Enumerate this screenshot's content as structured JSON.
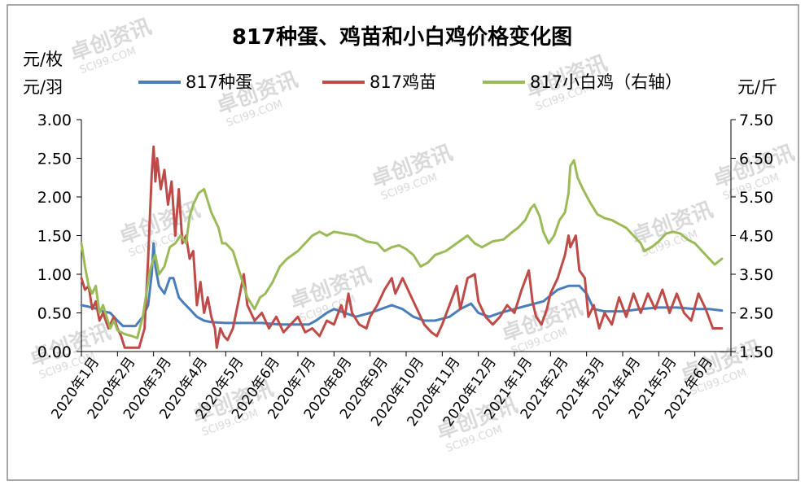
{
  "watermark": {
    "brand": "卓创资讯",
    "site": "SCI99.COM",
    "color": "#dcdcdc"
  },
  "chart_data": {
    "type": "line",
    "title": "817种蛋、鸡苗和小白鸡价格变化图",
    "left_axis_units": [
      "元/枚",
      "元/羽"
    ],
    "right_axis_unit": "元/斤",
    "y_left": {
      "min": 0,
      "max": 3,
      "ticks": [
        "0.00",
        "0.50",
        "1.00",
        "1.50",
        "2.00",
        "2.50",
        "3.00"
      ]
    },
    "y_right": {
      "min": 1.5,
      "max": 7.5,
      "ticks": [
        "1.50",
        "2.50",
        "3.50",
        "4.50",
        "5.50",
        "6.50",
        "7.50"
      ]
    },
    "x_labels": [
      "2020年1月",
      "2020年2月",
      "2020年3月",
      "2020年4月",
      "2020年5月",
      "2020年6月",
      "2020年7月",
      "2020年8月",
      "2020年9月",
      "2020年10月",
      "2020年11月",
      "2020年12月",
      "2021年1月",
      "2021年2月",
      "2021年3月",
      "2021年4月",
      "2021年5月",
      "2021年6月"
    ],
    "legend_position": "top",
    "grid": false,
    "series": [
      {
        "name": "817种蛋",
        "axis": "left",
        "color": "#4a7ebb",
        "points": [
          [
            0,
            0.6
          ],
          [
            0.2,
            0.58
          ],
          [
            0.45,
            0.55
          ],
          [
            0.6,
            0.52
          ],
          [
            0.8,
            0.5
          ],
          [
            1.0,
            0.4
          ],
          [
            1.15,
            0.33
          ],
          [
            1.5,
            0.33
          ],
          [
            1.7,
            0.45
          ],
          [
            1.85,
            0.6
          ],
          [
            1.95,
            1.0
          ],
          [
            2.0,
            1.4
          ],
          [
            2.05,
            1.1
          ],
          [
            2.15,
            0.85
          ],
          [
            2.3,
            0.75
          ],
          [
            2.45,
            0.95
          ],
          [
            2.55,
            0.95
          ],
          [
            2.7,
            0.7
          ],
          [
            2.85,
            0.62
          ],
          [
            3.0,
            0.55
          ],
          [
            3.2,
            0.45
          ],
          [
            3.4,
            0.4
          ],
          [
            3.6,
            0.38
          ],
          [
            4.0,
            0.37
          ],
          [
            4.5,
            0.37
          ],
          [
            5.0,
            0.37
          ],
          [
            5.5,
            0.35
          ],
          [
            6.0,
            0.35
          ],
          [
            6.3,
            0.35
          ],
          [
            6.5,
            0.4
          ],
          [
            6.8,
            0.5
          ],
          [
            7.0,
            0.55
          ],
          [
            7.3,
            0.5
          ],
          [
            7.6,
            0.45
          ],
          [
            8.0,
            0.5
          ],
          [
            8.3,
            0.55
          ],
          [
            8.6,
            0.6
          ],
          [
            8.9,
            0.55
          ],
          [
            9.2,
            0.45
          ],
          [
            9.5,
            0.4
          ],
          [
            9.8,
            0.4
          ],
          [
            10.2,
            0.45
          ],
          [
            10.5,
            0.55
          ],
          [
            10.8,
            0.62
          ],
          [
            11.0,
            0.5
          ],
          [
            11.3,
            0.45
          ],
          [
            11.6,
            0.5
          ],
          [
            12.0,
            0.55
          ],
          [
            12.4,
            0.6
          ],
          [
            12.8,
            0.65
          ],
          [
            13.2,
            0.8
          ],
          [
            13.5,
            0.85
          ],
          [
            13.8,
            0.85
          ],
          [
            14.0,
            0.75
          ],
          [
            14.2,
            0.55
          ],
          [
            14.5,
            0.52
          ],
          [
            15.0,
            0.52
          ],
          [
            15.5,
            0.55
          ],
          [
            16.0,
            0.57
          ],
          [
            16.5,
            0.57
          ],
          [
            17.0,
            0.55
          ],
          [
            17.4,
            0.55
          ],
          [
            17.75,
            0.53
          ]
        ]
      },
      {
        "name": "817鸡苗",
        "axis": "left",
        "color": "#be4b48",
        "points": [
          [
            0,
            0.95
          ],
          [
            0.1,
            0.8
          ],
          [
            0.2,
            0.85
          ],
          [
            0.3,
            0.55
          ],
          [
            0.4,
            0.65
          ],
          [
            0.5,
            0.4
          ],
          [
            0.6,
            0.5
          ],
          [
            0.75,
            0.3
          ],
          [
            0.9,
            0.45
          ],
          [
            1.0,
            0.3
          ],
          [
            1.1,
            0.2
          ],
          [
            1.2,
            0.05
          ],
          [
            1.4,
            0.05
          ],
          [
            1.6,
            0.05
          ],
          [
            1.75,
            0.3
          ],
          [
            1.85,
            1.2
          ],
          [
            1.95,
            2.3
          ],
          [
            2.0,
            2.65
          ],
          [
            2.05,
            2.2
          ],
          [
            2.1,
            2.5
          ],
          [
            2.2,
            2.1
          ],
          [
            2.3,
            2.35
          ],
          [
            2.4,
            1.9
          ],
          [
            2.5,
            2.2
          ],
          [
            2.6,
            1.5
          ],
          [
            2.7,
            2.1
          ],
          [
            2.8,
            1.4
          ],
          [
            2.9,
            1.5
          ],
          [
            3.0,
            1.2
          ],
          [
            3.1,
            1.3
          ],
          [
            3.2,
            0.6
          ],
          [
            3.3,
            0.9
          ],
          [
            3.4,
            0.5
          ],
          [
            3.5,
            0.7
          ],
          [
            3.6,
            0.45
          ],
          [
            3.7,
            0.3
          ],
          [
            3.75,
            0.05
          ],
          [
            3.85,
            0.3
          ],
          [
            3.95,
            0.2
          ],
          [
            4.05,
            0.15
          ],
          [
            4.2,
            0.3
          ],
          [
            4.35,
            0.65
          ],
          [
            4.5,
            1.0
          ],
          [
            4.6,
            0.6
          ],
          [
            4.8,
            0.4
          ],
          [
            5.0,
            0.5
          ],
          [
            5.2,
            0.3
          ],
          [
            5.4,
            0.45
          ],
          [
            5.6,
            0.25
          ],
          [
            5.8,
            0.35
          ],
          [
            6.0,
            0.45
          ],
          [
            6.2,
            0.25
          ],
          [
            6.4,
            0.3
          ],
          [
            6.6,
            0.2
          ],
          [
            6.8,
            0.4
          ],
          [
            7.0,
            0.35
          ],
          [
            7.2,
            0.6
          ],
          [
            7.3,
            0.45
          ],
          [
            7.4,
            0.75
          ],
          [
            7.5,
            0.5
          ],
          [
            7.7,
            0.35
          ],
          [
            7.9,
            0.3
          ],
          [
            8.0,
            0.45
          ],
          [
            8.2,
            0.6
          ],
          [
            8.4,
            0.8
          ],
          [
            8.6,
            0.95
          ],
          [
            8.7,
            0.75
          ],
          [
            8.9,
            0.95
          ],
          [
            9.1,
            0.75
          ],
          [
            9.3,
            0.55
          ],
          [
            9.5,
            0.35
          ],
          [
            9.7,
            0.25
          ],
          [
            9.85,
            0.2
          ],
          [
            10.0,
            0.35
          ],
          [
            10.2,
            0.6
          ],
          [
            10.4,
            0.85
          ],
          [
            10.5,
            0.55
          ],
          [
            10.7,
            0.95
          ],
          [
            10.9,
            1.0
          ],
          [
            11.0,
            0.65
          ],
          [
            11.2,
            0.45
          ],
          [
            11.4,
            0.35
          ],
          [
            11.6,
            0.45
          ],
          [
            11.8,
            0.6
          ],
          [
            12.0,
            0.5
          ],
          [
            12.2,
            0.8
          ],
          [
            12.4,
            1.05
          ],
          [
            12.5,
            0.65
          ],
          [
            12.6,
            0.45
          ],
          [
            12.75,
            0.35
          ],
          [
            12.9,
            0.55
          ],
          [
            13.0,
            0.75
          ],
          [
            13.2,
            0.95
          ],
          [
            13.4,
            1.25
          ],
          [
            13.5,
            1.5
          ],
          [
            13.55,
            1.35
          ],
          [
            13.7,
            1.5
          ],
          [
            13.8,
            1.05
          ],
          [
            13.95,
            0.95
          ],
          [
            14.05,
            0.45
          ],
          [
            14.2,
            0.6
          ],
          [
            14.35,
            0.3
          ],
          [
            14.5,
            0.5
          ],
          [
            14.7,
            0.35
          ],
          [
            14.9,
            0.7
          ],
          [
            15.1,
            0.45
          ],
          [
            15.3,
            0.75
          ],
          [
            15.5,
            0.5
          ],
          [
            15.7,
            0.75
          ],
          [
            15.9,
            0.55
          ],
          [
            16.1,
            0.8
          ],
          [
            16.3,
            0.5
          ],
          [
            16.5,
            0.75
          ],
          [
            16.7,
            0.5
          ],
          [
            16.9,
            0.4
          ],
          [
            17.1,
            0.75
          ],
          [
            17.3,
            0.55
          ],
          [
            17.5,
            0.3
          ],
          [
            17.75,
            0.3
          ]
        ]
      },
      {
        "name": "817小白鸡（右轴）",
        "axis": "right",
        "color": "#9bbb59",
        "points": [
          [
            0,
            4.3
          ],
          [
            0.1,
            3.7
          ],
          [
            0.2,
            3.2
          ],
          [
            0.3,
            3.0
          ],
          [
            0.4,
            3.2
          ],
          [
            0.5,
            2.5
          ],
          [
            0.6,
            2.7
          ],
          [
            0.7,
            2.4
          ],
          [
            0.8,
            2.1
          ],
          [
            0.9,
            2.3
          ],
          [
            1.0,
            2.05
          ],
          [
            1.2,
            1.95
          ],
          [
            1.4,
            1.9
          ],
          [
            1.55,
            1.85
          ],
          [
            1.7,
            2.4
          ],
          [
            1.8,
            3.0
          ],
          [
            1.9,
            3.6
          ],
          [
            2.0,
            3.9
          ],
          [
            2.05,
            4.0
          ],
          [
            2.15,
            3.5
          ],
          [
            2.3,
            3.7
          ],
          [
            2.45,
            4.2
          ],
          [
            2.6,
            4.3
          ],
          [
            2.75,
            4.5
          ],
          [
            2.9,
            4.3
          ],
          [
            3.0,
            5.0
          ],
          [
            3.1,
            5.3
          ],
          [
            3.25,
            5.6
          ],
          [
            3.4,
            5.7
          ],
          [
            3.5,
            5.4
          ],
          [
            3.6,
            5.1
          ],
          [
            3.8,
            4.7
          ],
          [
            3.9,
            4.3
          ],
          [
            4.0,
            4.3
          ],
          [
            4.2,
            4.1
          ],
          [
            4.4,
            3.5
          ],
          [
            4.5,
            3.2
          ],
          [
            4.6,
            2.9
          ],
          [
            4.8,
            2.6
          ],
          [
            4.95,
            2.9
          ],
          [
            5.1,
            3.0
          ],
          [
            5.3,
            3.3
          ],
          [
            5.5,
            3.7
          ],
          [
            5.7,
            3.9
          ],
          [
            6.0,
            4.1
          ],
          [
            6.2,
            4.3
          ],
          [
            6.4,
            4.5
          ],
          [
            6.6,
            4.6
          ],
          [
            6.8,
            4.5
          ],
          [
            7.0,
            4.6
          ],
          [
            7.3,
            4.55
          ],
          [
            7.6,
            4.5
          ],
          [
            7.9,
            4.35
          ],
          [
            8.2,
            4.3
          ],
          [
            8.4,
            4.1
          ],
          [
            8.6,
            4.2
          ],
          [
            8.8,
            4.25
          ],
          [
            9.0,
            4.15
          ],
          [
            9.2,
            4.0
          ],
          [
            9.4,
            3.7
          ],
          [
            9.6,
            3.8
          ],
          [
            9.8,
            4.0
          ],
          [
            10.1,
            4.1
          ],
          [
            10.4,
            4.3
          ],
          [
            10.7,
            4.5
          ],
          [
            10.9,
            4.3
          ],
          [
            11.1,
            4.2
          ],
          [
            11.4,
            4.35
          ],
          [
            11.7,
            4.4
          ],
          [
            11.95,
            4.6
          ],
          [
            12.1,
            4.7
          ],
          [
            12.3,
            4.9
          ],
          [
            12.45,
            5.2
          ],
          [
            12.55,
            5.3
          ],
          [
            12.7,
            5.0
          ],
          [
            12.8,
            4.6
          ],
          [
            12.95,
            4.3
          ],
          [
            13.1,
            4.5
          ],
          [
            13.25,
            4.9
          ],
          [
            13.4,
            5.1
          ],
          [
            13.5,
            5.6
          ],
          [
            13.55,
            6.3
          ],
          [
            13.65,
            6.45
          ],
          [
            13.75,
            6.0
          ],
          [
            13.9,
            5.7
          ],
          [
            14.1,
            5.35
          ],
          [
            14.3,
            5.05
          ],
          [
            14.5,
            4.95
          ],
          [
            14.7,
            4.9
          ],
          [
            14.9,
            4.8
          ],
          [
            15.1,
            4.7
          ],
          [
            15.3,
            4.5
          ],
          [
            15.5,
            4.3
          ],
          [
            15.6,
            4.1
          ],
          [
            15.8,
            4.2
          ],
          [
            16.0,
            4.35
          ],
          [
            16.2,
            4.55
          ],
          [
            16.4,
            4.6
          ],
          [
            16.6,
            4.55
          ],
          [
            16.8,
            4.4
          ],
          [
            17.0,
            4.3
          ],
          [
            17.2,
            4.1
          ],
          [
            17.4,
            3.9
          ],
          [
            17.55,
            3.75
          ],
          [
            17.75,
            3.9
          ]
        ]
      }
    ]
  }
}
